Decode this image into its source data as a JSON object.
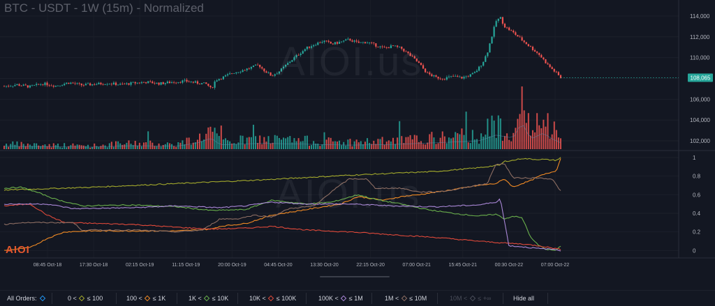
{
  "title": "BTC - USDT - 1W (15m) - Normalized",
  "watermark": "AIOI.us",
  "logo_text": "AIOI",
  "chart_data": [
    {
      "type": "candlestick",
      "panel": "price",
      "y_ticks": [
        "114,000",
        "112,000",
        "110,000",
        "108,000",
        "106,000",
        "104,000",
        "102,000"
      ],
      "ylim": [
        101200,
        115000
      ],
      "last_price": "108,065",
      "colors": {
        "up": "#26a69a",
        "down": "#ef5350"
      },
      "price_path": [
        [
          0,
          107250
        ],
        [
          3,
          107400
        ],
        [
          6,
          107200
        ],
        [
          9,
          107500
        ],
        [
          12,
          107300
        ],
        [
          15,
          107600
        ],
        [
          18,
          107350
        ],
        [
          21,
          107450
        ],
        [
          24,
          107550
        ],
        [
          27,
          107400
        ],
        [
          30,
          107550
        ],
        [
          33,
          107650
        ],
        [
          36,
          107500
        ],
        [
          39,
          107650
        ],
        [
          42,
          107750
        ],
        [
          45,
          107550
        ],
        [
          47,
          107450
        ],
        [
          48,
          106950
        ],
        [
          49,
          107850
        ],
        [
          51,
          108150
        ],
        [
          53,
          108550
        ],
        [
          55,
          108750
        ],
        [
          57,
          109000
        ],
        [
          59,
          109300
        ],
        [
          60,
          108850
        ],
        [
          62,
          108250
        ],
        [
          64,
          108750
        ],
        [
          66,
          109550
        ],
        [
          68,
          110250
        ],
        [
          70,
          110900
        ],
        [
          72,
          111300
        ],
        [
          74,
          111600
        ],
        [
          76,
          111300
        ],
        [
          78,
          111500
        ],
        [
          80,
          111750
        ],
        [
          82,
          111400
        ],
        [
          84,
          111500
        ],
        [
          86,
          111200
        ],
        [
          88,
          110900
        ],
        [
          90,
          111100
        ],
        [
          92,
          110900
        ],
        [
          94,
          110250
        ],
        [
          96,
          109500
        ],
        [
          98,
          108500
        ],
        [
          100,
          108100
        ],
        [
          102,
          108000
        ],
        [
          104,
          108200
        ],
        [
          106,
          108050
        ],
        [
          108,
          108300
        ],
        [
          109,
          108500
        ],
        [
          110,
          109000
        ],
        [
          111,
          109600
        ],
        [
          112,
          110500
        ],
        [
          113,
          112000
        ],
        [
          114,
          113500
        ],
        [
          115,
          113850
        ],
        [
          116,
          113000
        ],
        [
          118,
          112400
        ],
        [
          120,
          111700
        ],
        [
          122,
          111000
        ],
        [
          124,
          110300
        ],
        [
          126,
          109300
        ],
        [
          128,
          108500
        ],
        [
          129,
          108065
        ]
      ],
      "volume_path": [
        [
          0,
          0.1
        ],
        [
          20,
          0.07
        ],
        [
          30,
          0.12
        ],
        [
          40,
          0.1
        ],
        [
          45,
          0.22
        ],
        [
          48,
          0.38
        ],
        [
          50,
          0.15
        ],
        [
          60,
          0.2
        ],
        [
          70,
          0.17
        ],
        [
          80,
          0.14
        ],
        [
          90,
          0.16
        ],
        [
          100,
          0.22
        ],
        [
          110,
          0.28
        ],
        [
          114,
          0.48
        ],
        [
          118,
          0.38
        ],
        [
          120,
          0.92
        ],
        [
          122,
          0.34
        ],
        [
          125,
          0.55
        ],
        [
          127,
          0.35
        ],
        [
          129,
          0.22
        ]
      ]
    },
    {
      "type": "line",
      "panel": "normalized",
      "y_ticks": [
        "1",
        "0.8",
        "0.6",
        "0.4",
        "0.2",
        "0"
      ],
      "ylim": [
        -0.05,
        1.03
      ],
      "x_tick_labels": [
        "08:45 Oct-18",
        "17:30 Oct-18",
        "02:15 Oct-19",
        "11:15 Oct-19",
        "20:00 Oct-19",
        "04:45 Oct-20",
        "13:30 Oct-20",
        "22:15 Oct-20",
        "07:00 Oct-21",
        "15:45 Oct-21",
        "00:30 Oct-22",
        "07:00 Oct-22"
      ],
      "series": [
        {
          "legend": "0 < ◆ ≤ 100",
          "color": "#a3a92c",
          "points": [
            [
              0,
              0.65
            ],
            [
              20,
              0.68
            ],
            [
              40,
              0.72
            ],
            [
              60,
              0.76
            ],
            [
              80,
              0.81
            ],
            [
              100,
              0.85
            ],
            [
              110,
              0.89
            ],
            [
              115,
              0.92
            ],
            [
              116,
              0.96
            ],
            [
              118,
              0.97
            ],
            [
              120,
              0.99
            ],
            [
              123,
              0.98
            ],
            [
              125,
              0.98
            ],
            [
              128,
              0.97
            ],
            [
              129,
              1.0
            ]
          ]
        },
        {
          "legend": "100 < ◆ ≤ 1K",
          "color": "#f08a24",
          "points": [
            [
              0,
              0.0
            ],
            [
              6,
              0.03
            ],
            [
              10,
              0.13
            ],
            [
              14,
              0.2
            ],
            [
              20,
              0.21
            ],
            [
              40,
              0.21
            ],
            [
              48,
              0.23
            ],
            [
              50,
              0.26
            ],
            [
              56,
              0.29
            ],
            [
              62,
              0.38
            ],
            [
              70,
              0.44
            ],
            [
              78,
              0.5
            ],
            [
              82,
              0.58
            ],
            [
              88,
              0.54
            ],
            [
              92,
              0.58
            ],
            [
              96,
              0.6
            ],
            [
              102,
              0.64
            ],
            [
              110,
              0.7
            ],
            [
              114,
              0.72
            ],
            [
              116,
              0.77
            ],
            [
              118,
              0.68
            ],
            [
              120,
              0.72
            ],
            [
              122,
              0.75
            ],
            [
              124,
              0.8
            ],
            [
              128,
              0.86
            ],
            [
              129,
              0.99
            ]
          ]
        },
        {
          "legend": "1K < ◆ ≤ 10K",
          "color": "#6ab04c",
          "points": [
            [
              0,
              0.67
            ],
            [
              4,
              0.68
            ],
            [
              8,
              0.62
            ],
            [
              12,
              0.55
            ],
            [
              18,
              0.48
            ],
            [
              30,
              0.49
            ],
            [
              40,
              0.47
            ],
            [
              48,
              0.43
            ],
            [
              56,
              0.44
            ],
            [
              62,
              0.54
            ],
            [
              70,
              0.5
            ],
            [
              76,
              0.52
            ],
            [
              82,
              0.6
            ],
            [
              86,
              0.55
            ],
            [
              92,
              0.5
            ],
            [
              98,
              0.44
            ],
            [
              104,
              0.4
            ],
            [
              110,
              0.37
            ],
            [
              114,
              0.39
            ],
            [
              116,
              0.34
            ],
            [
              118,
              0.37
            ],
            [
              120,
              0.35
            ],
            [
              121,
              0.26
            ],
            [
              122,
              0.14
            ],
            [
              124,
              0.05
            ],
            [
              126,
              0.01
            ],
            [
              128,
              0.0
            ],
            [
              129,
              0.05
            ]
          ]
        },
        {
          "legend": "10K < ◆ ≤ 100K",
          "color": "#e0493a",
          "points": [
            [
              0,
              0.48
            ],
            [
              6,
              0.5
            ],
            [
              10,
              0.38
            ],
            [
              14,
              0.3
            ],
            [
              30,
              0.28
            ],
            [
              40,
              0.25
            ],
            [
              48,
              0.23
            ],
            [
              56,
              0.24
            ],
            [
              62,
              0.26
            ],
            [
              70,
              0.22
            ],
            [
              80,
              0.2
            ],
            [
              90,
              0.17
            ],
            [
              100,
              0.14
            ],
            [
              110,
              0.1
            ],
            [
              116,
              0.08
            ],
            [
              120,
              0.07
            ],
            [
              124,
              0.05
            ],
            [
              128,
              0.02
            ],
            [
              129,
              0.01
            ]
          ]
        },
        {
          "legend": "100K < ◆ ≤ 1M",
          "color": "#a987d6",
          "points": [
            [
              0,
              0.5
            ],
            [
              10,
              0.5
            ],
            [
              16,
              0.45
            ],
            [
              30,
              0.46
            ],
            [
              40,
              0.48
            ],
            [
              50,
              0.46
            ],
            [
              56,
              0.48
            ],
            [
              62,
              0.52
            ],
            [
              70,
              0.5
            ],
            [
              80,
              0.5
            ],
            [
              90,
              0.48
            ],
            [
              100,
              0.47
            ],
            [
              110,
              0.49
            ],
            [
              114,
              0.52
            ],
            [
              115,
              0.56
            ],
            [
              117,
              0.05
            ],
            [
              120,
              0.04
            ],
            [
              124,
              0.02
            ],
            [
              128,
              0.01
            ],
            [
              129,
              0.0
            ]
          ]
        },
        {
          "legend": "1M < ◆ ≤ 10M",
          "color": "#8d6e63",
          "points": [
            [
              0,
              0.28
            ],
            [
              4,
              0.3
            ],
            [
              16,
              0.3
            ],
            [
              18,
              0.22
            ],
            [
              30,
              0.22
            ],
            [
              40,
              0.2
            ],
            [
              46,
              0.22
            ],
            [
              50,
              0.34
            ],
            [
              54,
              0.34
            ],
            [
              58,
              0.38
            ],
            [
              62,
              0.36
            ],
            [
              66,
              0.45
            ],
            [
              72,
              0.48
            ],
            [
              76,
              0.64
            ],
            [
              80,
              0.77
            ],
            [
              84,
              0.77
            ],
            [
              86,
              0.67
            ],
            [
              92,
              0.67
            ],
            [
              96,
              0.63
            ],
            [
              100,
              0.63
            ],
            [
              104,
              0.65
            ],
            [
              108,
              0.69
            ],
            [
              112,
              0.72
            ],
            [
              114,
              0.93
            ],
            [
              116,
              0.93
            ],
            [
              118,
              0.78
            ],
            [
              120,
              0.78
            ],
            [
              124,
              0.78
            ],
            [
              127,
              0.77
            ],
            [
              129,
              0.64
            ]
          ]
        }
      ]
    }
  ],
  "legend": {
    "all_orders": "All Orders:",
    "items": [
      {
        "label": "0 < ",
        "tail": " ≤ 100",
        "color": "#a3a92c",
        "active": true
      },
      {
        "label": "100 < ",
        "tail": " ≤ 1K",
        "color": "#f08a24",
        "active": true
      },
      {
        "label": "1K < ",
        "tail": " ≤ 10K",
        "color": "#6ab04c",
        "active": true
      },
      {
        "label": "10K < ",
        "tail": " ≤ 100K",
        "color": "#e0493a",
        "active": true
      },
      {
        "label": "100K < ",
        "tail": " ≤ 1M",
        "color": "#a987d6",
        "active": true
      },
      {
        "label": "1M < ",
        "tail": " ≤ 10M",
        "color": "#8d6e63",
        "active": true
      },
      {
        "label": "10M < ",
        "tail": " ≤ +∞",
        "color": "#4a4e5a",
        "active": false
      }
    ],
    "hide_all": "Hide all",
    "all_color": "#2196f3"
  }
}
